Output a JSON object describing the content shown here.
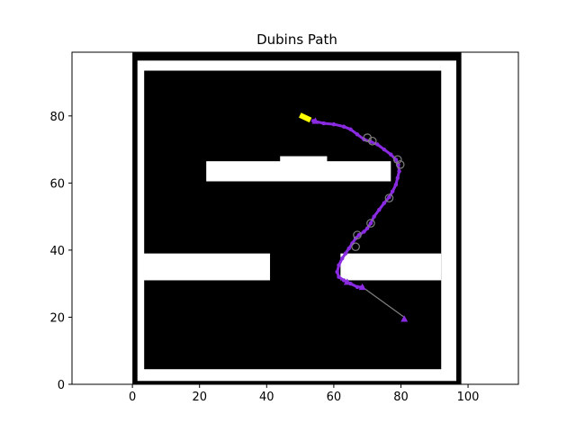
{
  "chart_data": {
    "type": "scatter",
    "title": "Dubins Path",
    "xlabel": "",
    "ylabel": "",
    "xlim": [
      -18,
      115
    ],
    "ylim": [
      0,
      99
    ],
    "grid": false,
    "x_ticks": [
      0,
      20,
      40,
      60,
      80,
      100
    ],
    "y_ticks": [
      0,
      20,
      40,
      60,
      80
    ],
    "colors": {
      "background": "#ffffff",
      "map_wall": "#000000",
      "free_space": "#ffffff",
      "path": "#8a2be2",
      "straight_segment": "#808080",
      "waypoint_circle": "#808080",
      "vehicle": "#ffff00"
    },
    "map": {
      "outer_bounds": [
        [
          0,
          0
        ],
        [
          98,
          99
        ]
      ],
      "obstacles": [
        {
          "name": "middle-bar",
          "x0": 22,
          "y0": 60.5,
          "x1": 77,
          "y1": 66.5
        },
        {
          "name": "middle-bar-bump",
          "x0": 44,
          "y0": 66,
          "x1": 58,
          "y1": 68
        },
        {
          "name": "lower-left-bar",
          "x0": 3,
          "y0": 31,
          "x1": 41,
          "y1": 39
        },
        {
          "name": "lower-right-bar",
          "x0": 62,
          "y0": 31,
          "x1": 92,
          "y1": 39
        }
      ]
    },
    "series": [
      {
        "type": "line",
        "points": [
          [
            51,
            79.5
          ],
          [
            54,
            78.5
          ],
          [
            57,
            77.8
          ],
          [
            60,
            77.5
          ],
          [
            63,
            76.8
          ],
          [
            65,
            76
          ],
          [
            67,
            74.5
          ],
          [
            69,
            73
          ],
          [
            71,
            72.3
          ],
          [
            73,
            71.5
          ],
          [
            75,
            70
          ],
          [
            77,
            68.5
          ],
          [
            78.5,
            67
          ],
          [
            79.2,
            65.5
          ],
          [
            79.5,
            63.5
          ],
          [
            79,
            61.5
          ],
          [
            78.5,
            59.5
          ],
          [
            77.5,
            57.5
          ],
          [
            76.5,
            55.8
          ],
          [
            75,
            54
          ],
          [
            73.5,
            52
          ],
          [
            72,
            50
          ],
          [
            71,
            48
          ],
          [
            70,
            46.5
          ],
          [
            69,
            45.5
          ],
          [
            67.5,
            44.5
          ],
          [
            66.5,
            43.5
          ],
          [
            65.5,
            42
          ],
          [
            64.5,
            40.5
          ],
          [
            63.5,
            39
          ],
          [
            62.5,
            37.5
          ],
          [
            61.5,
            35.5
          ],
          [
            61,
            33.5
          ],
          [
            61.5,
            32
          ],
          [
            63,
            31
          ],
          [
            65,
            30
          ],
          [
            67,
            29
          ],
          [
            68.5,
            29
          ]
        ]
      },
      {
        "type": "straight",
        "points": [
          [
            68.5,
            29
          ],
          [
            81,
            20
          ]
        ]
      }
    ],
    "markers": [
      {
        "shape": "circle",
        "x": 70,
        "y": 73.5
      },
      {
        "shape": "circle",
        "x": 71.5,
        "y": 72.5
      },
      {
        "shape": "circle",
        "x": 79,
        "y": 67
      },
      {
        "shape": "circle",
        "x": 79.8,
        "y": 65.5
      },
      {
        "shape": "circle",
        "x": 76.5,
        "y": 55.5
      },
      {
        "shape": "circle",
        "x": 71,
        "y": 48
      },
      {
        "shape": "circle",
        "x": 67,
        "y": 44.5
      },
      {
        "shape": "circle",
        "x": 66.5,
        "y": 41
      },
      {
        "shape": "triangle",
        "x": 54.5,
        "y": 78.5
      },
      {
        "shape": "triangle",
        "x": 64,
        "y": 30.5
      },
      {
        "shape": "triangle",
        "x": 68.5,
        "y": 29
      },
      {
        "shape": "triangle",
        "x": 81,
        "y": 19.5
      }
    ],
    "vehicle": {
      "x": 51.5,
      "y": 79.5,
      "heading_deg": -25
    }
  }
}
